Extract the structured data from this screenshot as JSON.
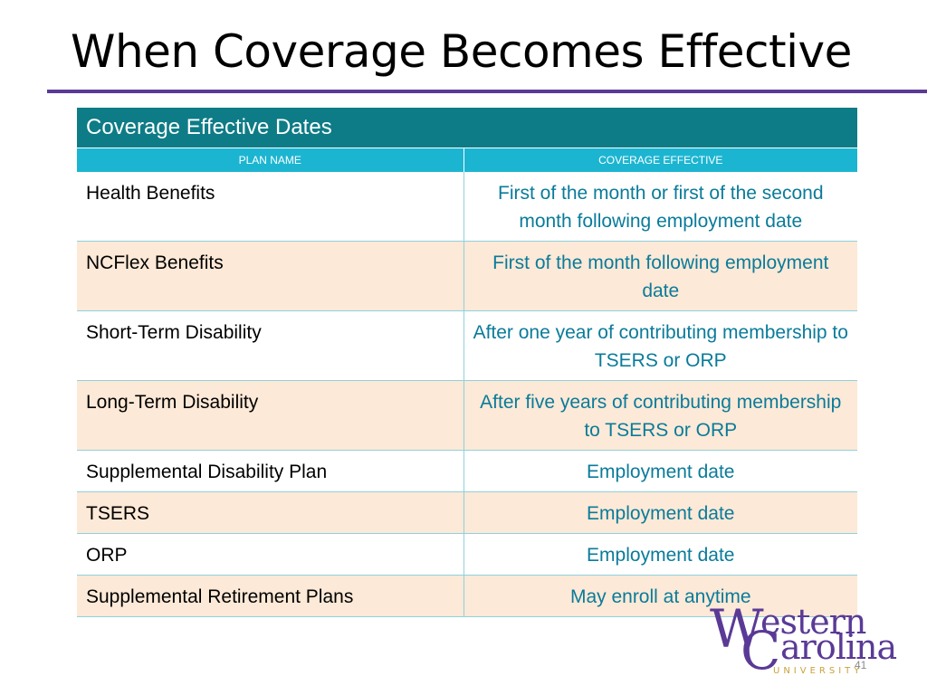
{
  "slide": {
    "title": "When Coverage Becomes Effective",
    "page_number": "41",
    "accent_color": "#5a3a96"
  },
  "table": {
    "caption": "Coverage Effective Dates",
    "columns": [
      "PLAN NAME",
      "COVERAGE EFFECTIVE"
    ],
    "header_color": "#0e7c86",
    "subheader_color": "#1cb5d1",
    "stripe_color": "#fde9d7",
    "rows": [
      {
        "plan": "Health Benefits",
        "effective": "First of the month or first of the second month following employment date"
      },
      {
        "plan": "NCFlex Benefits",
        "effective": "First of the month following employment date"
      },
      {
        "plan": "Short-Term Disability",
        "effective": "After one year of contributing membership to TSERS or ORP"
      },
      {
        "plan": "Long-Term Disability",
        "effective": "After five years of contributing membership to TSERS or ORP"
      },
      {
        "plan": "Supplemental Disability Plan",
        "effective": "Employment date"
      },
      {
        "plan": "TSERS",
        "effective": "Employment date"
      },
      {
        "plan": "ORP",
        "effective": "Employment date"
      },
      {
        "plan": "Supplemental Retirement Plans",
        "effective": "May enroll at anytime"
      }
    ]
  },
  "logo": {
    "w": "W",
    "line1_rest": "estern",
    "c": "C",
    "line2_rest": "arolina",
    "subtitle": "UNIVERSITY"
  }
}
